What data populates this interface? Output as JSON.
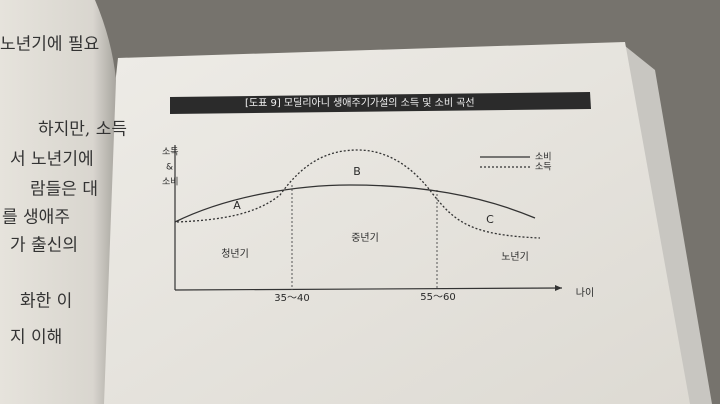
{
  "left_page": {
    "lines": [
      "노년기에 필요",
      "하지만, 소득",
      "서 노년기에",
      "람들은 대",
      "를 생애주",
      "가 출신의",
      "화한 이",
      "지 이해"
    ]
  },
  "figure": {
    "title": "[도표 9]  모딜리아니 생애주기가설의 소득 및 소비 곡선",
    "y_label": [
      "소득",
      "&",
      "소비"
    ],
    "legend": [
      "소비",
      "소득"
    ],
    "regions": [
      "A",
      "B",
      "C"
    ],
    "stages": [
      "청년기",
      "중년기",
      "노년기"
    ],
    "x_ticks": [
      "35～40",
      "55～60"
    ],
    "x_label": "나이"
  }
}
